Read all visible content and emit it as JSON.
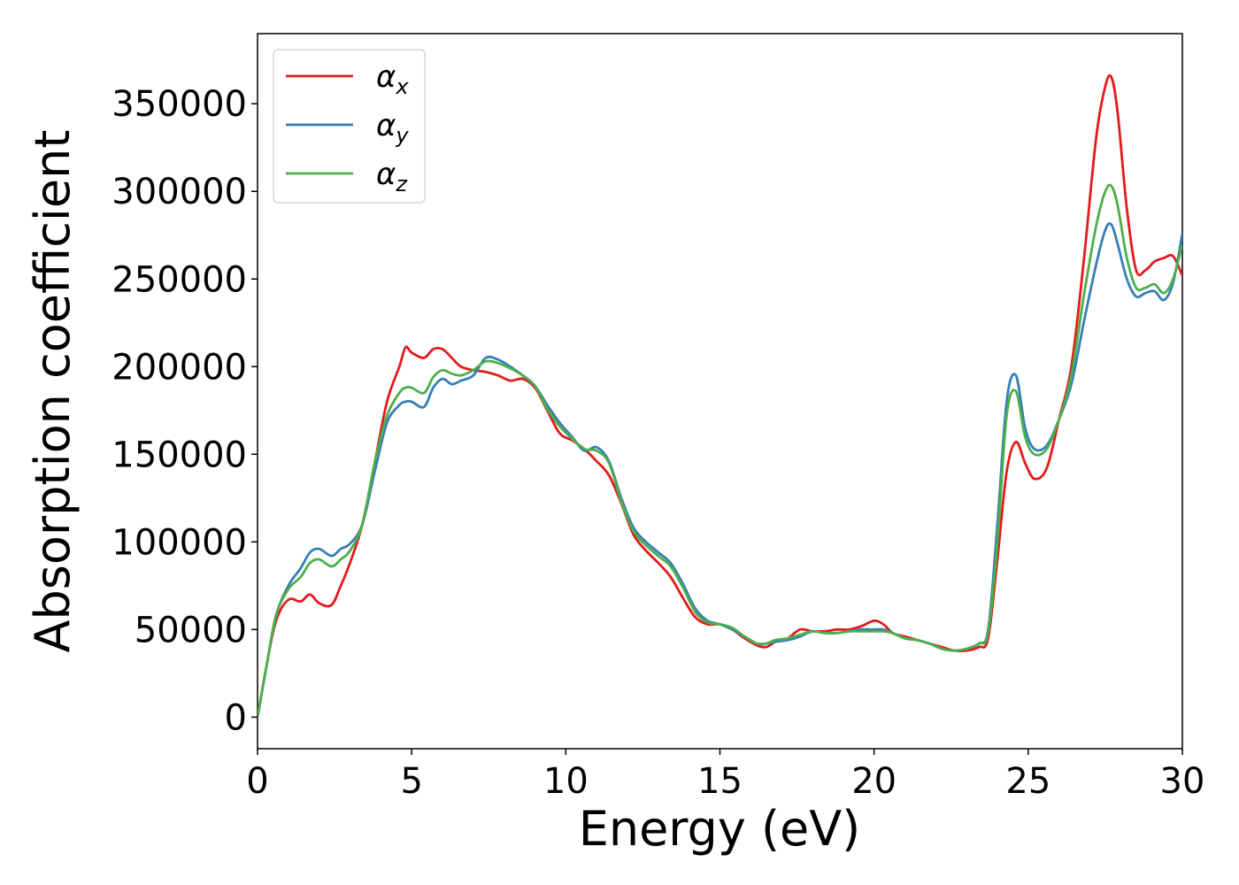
{
  "chart_data": {
    "type": "line",
    "title": "",
    "xlabel": "Energy (eV)",
    "ylabel": "Absorption coefficient",
    "xlim": [
      0,
      30
    ],
    "ylim": [
      -18000,
      390000
    ],
    "xticks": [
      0,
      5,
      10,
      15,
      20,
      25,
      30
    ],
    "xtick_labels": [
      "0",
      "5",
      "10",
      "15",
      "20",
      "25",
      "30"
    ],
    "yticks": [
      0,
      50000,
      100000,
      150000,
      200000,
      250000,
      300000,
      350000
    ],
    "ytick_labels": [
      "0",
      "50000",
      "100000",
      "150000",
      "200000",
      "250000",
      "300000",
      "350000"
    ],
    "grid": false,
    "legend": "top-left",
    "series": [
      {
        "name": "α",
        "sub": "x",
        "color": "#e41a1c",
        "x": [
          0,
          0.3,
          0.6,
          1.0,
          1.4,
          1.7,
          2.0,
          2.4,
          2.7,
          3.0,
          3.4,
          3.8,
          4.2,
          4.6,
          4.8,
          5.0,
          5.4,
          5.7,
          6.0,
          6.3,
          6.6,
          7.0,
          7.4,
          7.8,
          8.2,
          8.6,
          9.0,
          9.4,
          9.8,
          10.2,
          10.6,
          11.0,
          11.4,
          11.8,
          12.2,
          12.6,
          13.0,
          13.4,
          13.8,
          14.2,
          14.6,
          15.0,
          15.4,
          15.8,
          16.2,
          16.5,
          16.8,
          17.2,
          17.6,
          18.0,
          18.4,
          18.8,
          19.2,
          19.6,
          20.0,
          20.3,
          20.6,
          21.0,
          21.4,
          21.8,
          22.2,
          22.6,
          23.0,
          23.4,
          23.7,
          24.0,
          24.3,
          24.6,
          24.9,
          25.2,
          25.6,
          26.0,
          26.4,
          26.8,
          27.2,
          27.5,
          27.7,
          27.9,
          28.2,
          28.5,
          28.8,
          29.1,
          29.4,
          29.7,
          30.0
        ],
        "y": [
          0,
          30000,
          55000,
          67000,
          66000,
          70000,
          65000,
          64000,
          75000,
          88000,
          110000,
          145000,
          180000,
          200000,
          211000,
          208000,
          205000,
          210000,
          210000,
          205000,
          200000,
          198000,
          197000,
          195000,
          192000,
          193000,
          188000,
          175000,
          162000,
          158000,
          153000,
          146000,
          138000,
          122000,
          104000,
          95000,
          88000,
          80000,
          68000,
          57000,
          53000,
          53000,
          50000,
          45000,
          41000,
          40000,
          43000,
          45000,
          50000,
          49000,
          49000,
          50000,
          50000,
          52000,
          55000,
          53000,
          48000,
          46000,
          44000,
          42000,
          40000,
          38000,
          38000,
          40000,
          45000,
          90000,
          140000,
          157000,
          145000,
          136000,
          142000,
          170000,
          200000,
          260000,
          330000,
          360000,
          365000,
          345000,
          290000,
          255000,
          255000,
          260000,
          262000,
          263000,
          252000
        ]
      },
      {
        "name": "α",
        "sub": "y",
        "color": "#377eb8",
        "x": [
          0,
          0.3,
          0.6,
          1.0,
          1.4,
          1.7,
          2.0,
          2.4,
          2.7,
          3.0,
          3.4,
          3.8,
          4.2,
          4.6,
          4.8,
          5.0,
          5.4,
          5.7,
          6.0,
          6.3,
          6.6,
          7.0,
          7.4,
          7.8,
          8.2,
          8.6,
          9.0,
          9.4,
          9.8,
          10.2,
          10.6,
          11.0,
          11.4,
          11.8,
          12.2,
          12.6,
          13.0,
          13.4,
          13.8,
          14.2,
          14.6,
          15.0,
          15.4,
          15.8,
          16.2,
          16.5,
          16.8,
          17.2,
          17.6,
          18.0,
          18.4,
          18.8,
          19.2,
          19.6,
          20.0,
          20.3,
          20.6,
          21.0,
          21.4,
          21.8,
          22.2,
          22.6,
          23.0,
          23.4,
          23.7,
          24.0,
          24.3,
          24.6,
          24.9,
          25.2,
          25.6,
          26.0,
          26.4,
          26.8,
          27.2,
          27.5,
          27.7,
          27.9,
          28.2,
          28.5,
          28.8,
          29.1,
          29.4,
          29.7,
          30.0
        ],
        "y": [
          0,
          30000,
          58000,
          75000,
          85000,
          94000,
          96000,
          92000,
          96000,
          99000,
          110000,
          140000,
          168000,
          178000,
          180000,
          180000,
          177000,
          188000,
          193000,
          190000,
          192000,
          195000,
          205000,
          204000,
          200000,
          195000,
          189000,
          178000,
          168000,
          160000,
          152000,
          154000,
          146000,
          125000,
          108000,
          100000,
          94000,
          88000,
          76000,
          62000,
          55000,
          53000,
          50000,
          46000,
          42000,
          42000,
          43000,
          44000,
          46000,
          49000,
          48000,
          48000,
          49000,
          50000,
          50000,
          50000,
          48000,
          45000,
          44000,
          42000,
          39000,
          38000,
          39000,
          42000,
          50000,
          110000,
          180000,
          195000,
          165000,
          153000,
          155000,
          170000,
          190000,
          225000,
          258000,
          278000,
          281000,
          270000,
          250000,
          240000,
          242000,
          243000,
          238000,
          248000,
          276000
        ]
      },
      {
        "name": "α",
        "sub": "z",
        "color": "#4daf4a",
        "x": [
          0,
          0.3,
          0.6,
          1.0,
          1.4,
          1.7,
          2.0,
          2.4,
          2.7,
          3.0,
          3.4,
          3.8,
          4.2,
          4.6,
          4.8,
          5.0,
          5.4,
          5.7,
          6.0,
          6.3,
          6.6,
          7.0,
          7.4,
          7.8,
          8.2,
          8.6,
          9.0,
          9.4,
          9.8,
          10.2,
          10.6,
          11.0,
          11.4,
          11.8,
          12.2,
          12.6,
          13.0,
          13.4,
          13.8,
          14.2,
          14.6,
          15.0,
          15.4,
          15.8,
          16.2,
          16.5,
          16.8,
          17.2,
          17.6,
          18.0,
          18.4,
          18.8,
          19.2,
          19.6,
          20.0,
          20.3,
          20.6,
          21.0,
          21.4,
          21.8,
          22.2,
          22.6,
          23.0,
          23.4,
          23.7,
          24.0,
          24.3,
          24.6,
          24.9,
          25.2,
          25.6,
          26.0,
          26.4,
          26.8,
          27.2,
          27.5,
          27.7,
          27.9,
          28.2,
          28.5,
          28.8,
          29.1,
          29.4,
          29.7,
          30.0
        ],
        "y": [
          0,
          30000,
          58000,
          73000,
          80000,
          88000,
          90000,
          86000,
          90000,
          95000,
          110000,
          145000,
          172000,
          185000,
          188000,
          188000,
          185000,
          194000,
          198000,
          196000,
          195000,
          198000,
          203000,
          202000,
          199000,
          195000,
          189000,
          176000,
          166000,
          159000,
          153000,
          152000,
          145000,
          123000,
          106000,
          98000,
          92000,
          86000,
          74000,
          60000,
          54000,
          53000,
          51000,
          46000,
          42000,
          42000,
          44000,
          45000,
          47000,
          49000,
          48000,
          48000,
          49000,
          49000,
          49000,
          49000,
          48000,
          45000,
          44000,
          42000,
          39000,
          38000,
          39000,
          42000,
          48000,
          100000,
          172000,
          186000,
          160000,
          150000,
          153000,
          170000,
          195000,
          240000,
          280000,
          300000,
          303000,
          292000,
          262000,
          245000,
          245000,
          247000,
          242000,
          250000,
          270000
        ]
      }
    ]
  }
}
